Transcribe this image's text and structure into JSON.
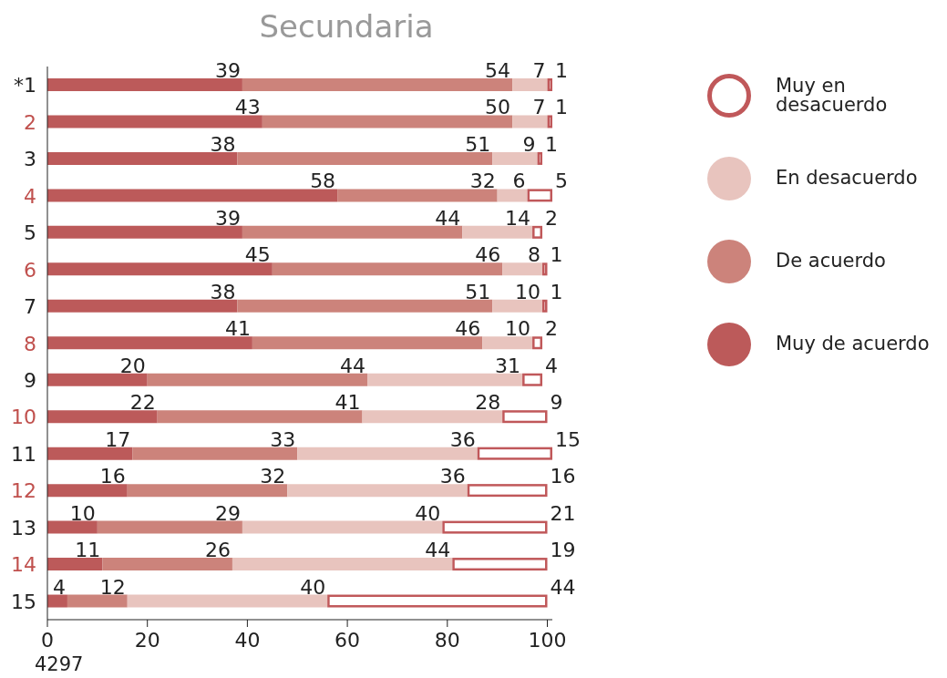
{
  "chart_data": {
    "type": "bar",
    "orientation": "horizontal",
    "stacked": true,
    "title": "Secundaria",
    "categories": [
      "*1",
      "2",
      "3",
      "4",
      "5",
      "6",
      "7",
      "8",
      "9",
      "10",
      "11",
      "12",
      "13",
      "14",
      "15"
    ],
    "series": [
      {
        "name": "Muy de acuerdo",
        "color": "#bc5a5a",
        "values": [
          39,
          43,
          38,
          58,
          39,
          45,
          38,
          41,
          20,
          22,
          17,
          16,
          10,
          11,
          4
        ]
      },
      {
        "name": "De acuerdo",
        "color": "#cc837b",
        "values": [
          54,
          50,
          51,
          32,
          44,
          46,
          51,
          46,
          44,
          41,
          33,
          32,
          29,
          26,
          12
        ]
      },
      {
        "name": "En desacuerdo",
        "color": "#e8c4be",
        "values": [
          7,
          7,
          9,
          6,
          14,
          8,
          10,
          10,
          31,
          28,
          36,
          36,
          40,
          44,
          40
        ]
      },
      {
        "name": "Muy en desacuerdo",
        "color": "#c0585a",
        "values": [
          1,
          1,
          1,
          5,
          2,
          1,
          1,
          2,
          4,
          9,
          15,
          16,
          21,
          19,
          44
        ]
      }
    ],
    "xlim": [
      0,
      101
    ],
    "xticks": [
      0,
      20,
      40,
      60,
      80,
      100
    ],
    "data_labels": true,
    "legend": "right",
    "annotations": [
      "4297"
    ]
  }
}
